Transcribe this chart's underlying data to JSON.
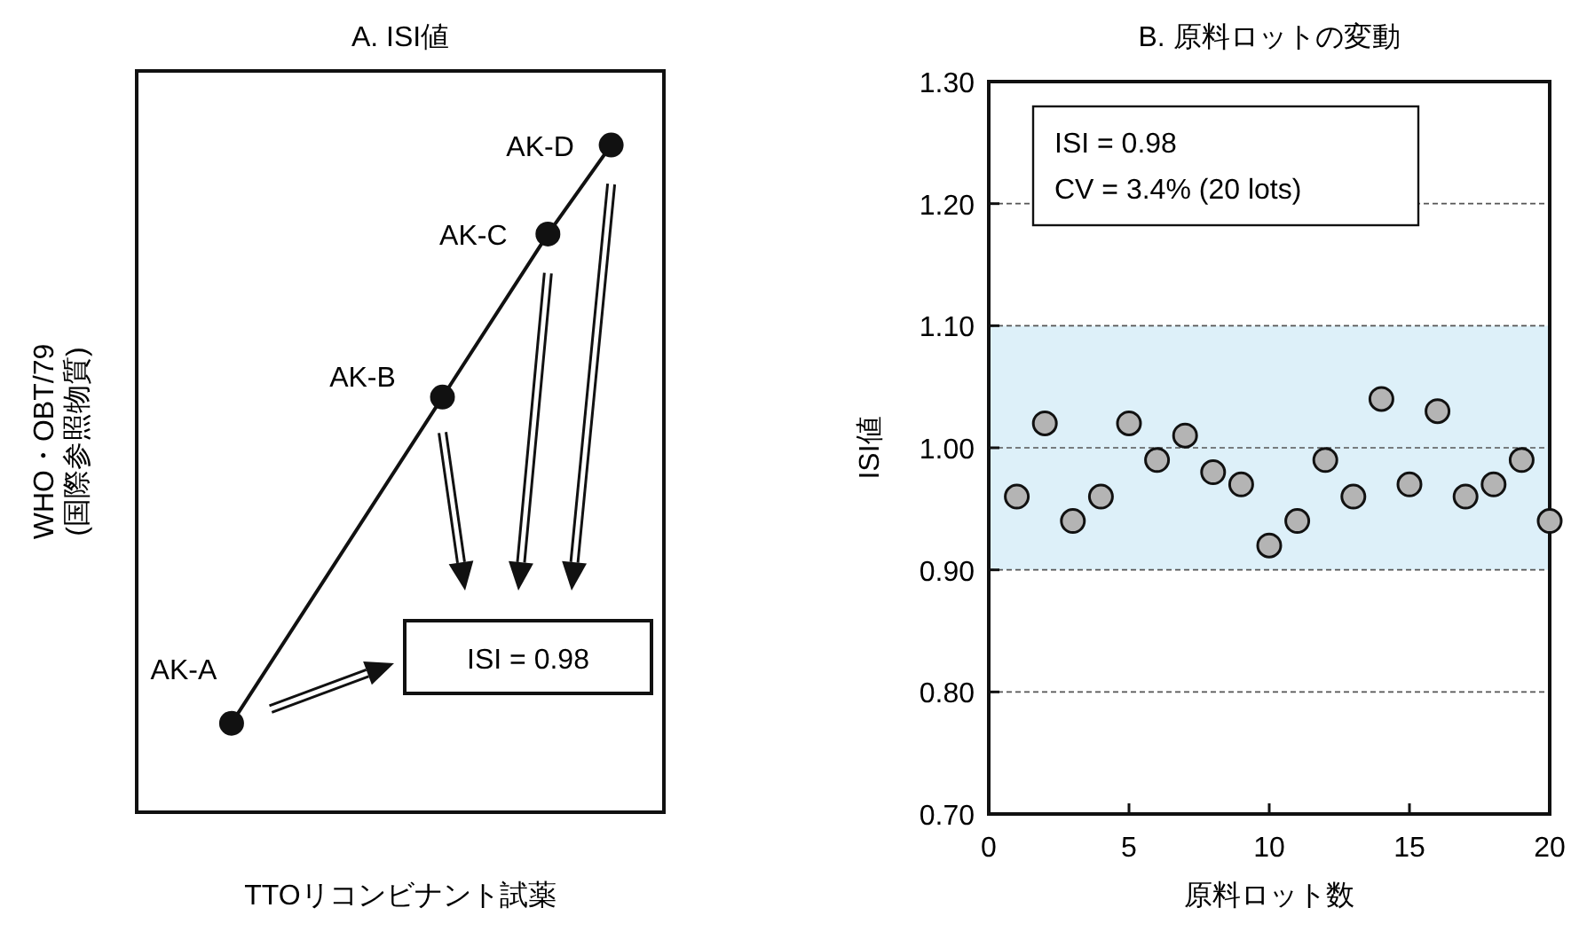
{
  "chart_data": [
    {
      "type": "other",
      "title": "A. ISI値",
      "xlabel": "TTOリコンビナント試薬",
      "ylabel": "WHO・OBT/79\n(国際参照物質)",
      "annotations": [
        "AK-A",
        "AK-B",
        "AK-C",
        "AK-D",
        "ISI = 0.98"
      ]
    },
    {
      "type": "scatter",
      "title": "B. 原料ロットの変動",
      "xlabel": "原料ロット数",
      "ylabel": "ISI値",
      "x": [
        1,
        2,
        3,
        4,
        5,
        6,
        7,
        8,
        9,
        10,
        11,
        12,
        13,
        14,
        15,
        16,
        17,
        18,
        19,
        20
      ],
      "series": [
        {
          "color": "#b4b4b4",
          "values": [
            0.96,
            1.02,
            0.94,
            0.96,
            1.02,
            0.99,
            1.01,
            0.98,
            0.97,
            0.92,
            0.94,
            0.99,
            0.96,
            1.04,
            0.97,
            1.03,
            0.96,
            0.97,
            0.99,
            0.94
          ]
        }
      ],
      "marker": "circle",
      "xlim": [
        0,
        20
      ],
      "xticks": [
        0,
        5,
        10,
        15,
        20
      ],
      "ylim": [
        0.7,
        1.3
      ],
      "yticks": [
        {
          "value": 0.7,
          "label": "0.70"
        },
        {
          "value": 0.8,
          "label": "0.80"
        },
        {
          "value": 0.9,
          "label": "0.90"
        },
        {
          "value": 1.0,
          "label": "1.00"
        },
        {
          "value": 1.1,
          "label": "1.10"
        },
        {
          "value": 1.2,
          "label": "1.20"
        },
        {
          "value": 1.3,
          "label": "1.30"
        }
      ],
      "grid": "y",
      "bands": [
        {
          "axis": "y",
          "from": 0.9,
          "to": 1.1,
          "color": "#ddf0f9"
        }
      ],
      "annotations": [
        "ISI = 0.98",
        "CV = 3.4% (20 lots)"
      ]
    }
  ]
}
